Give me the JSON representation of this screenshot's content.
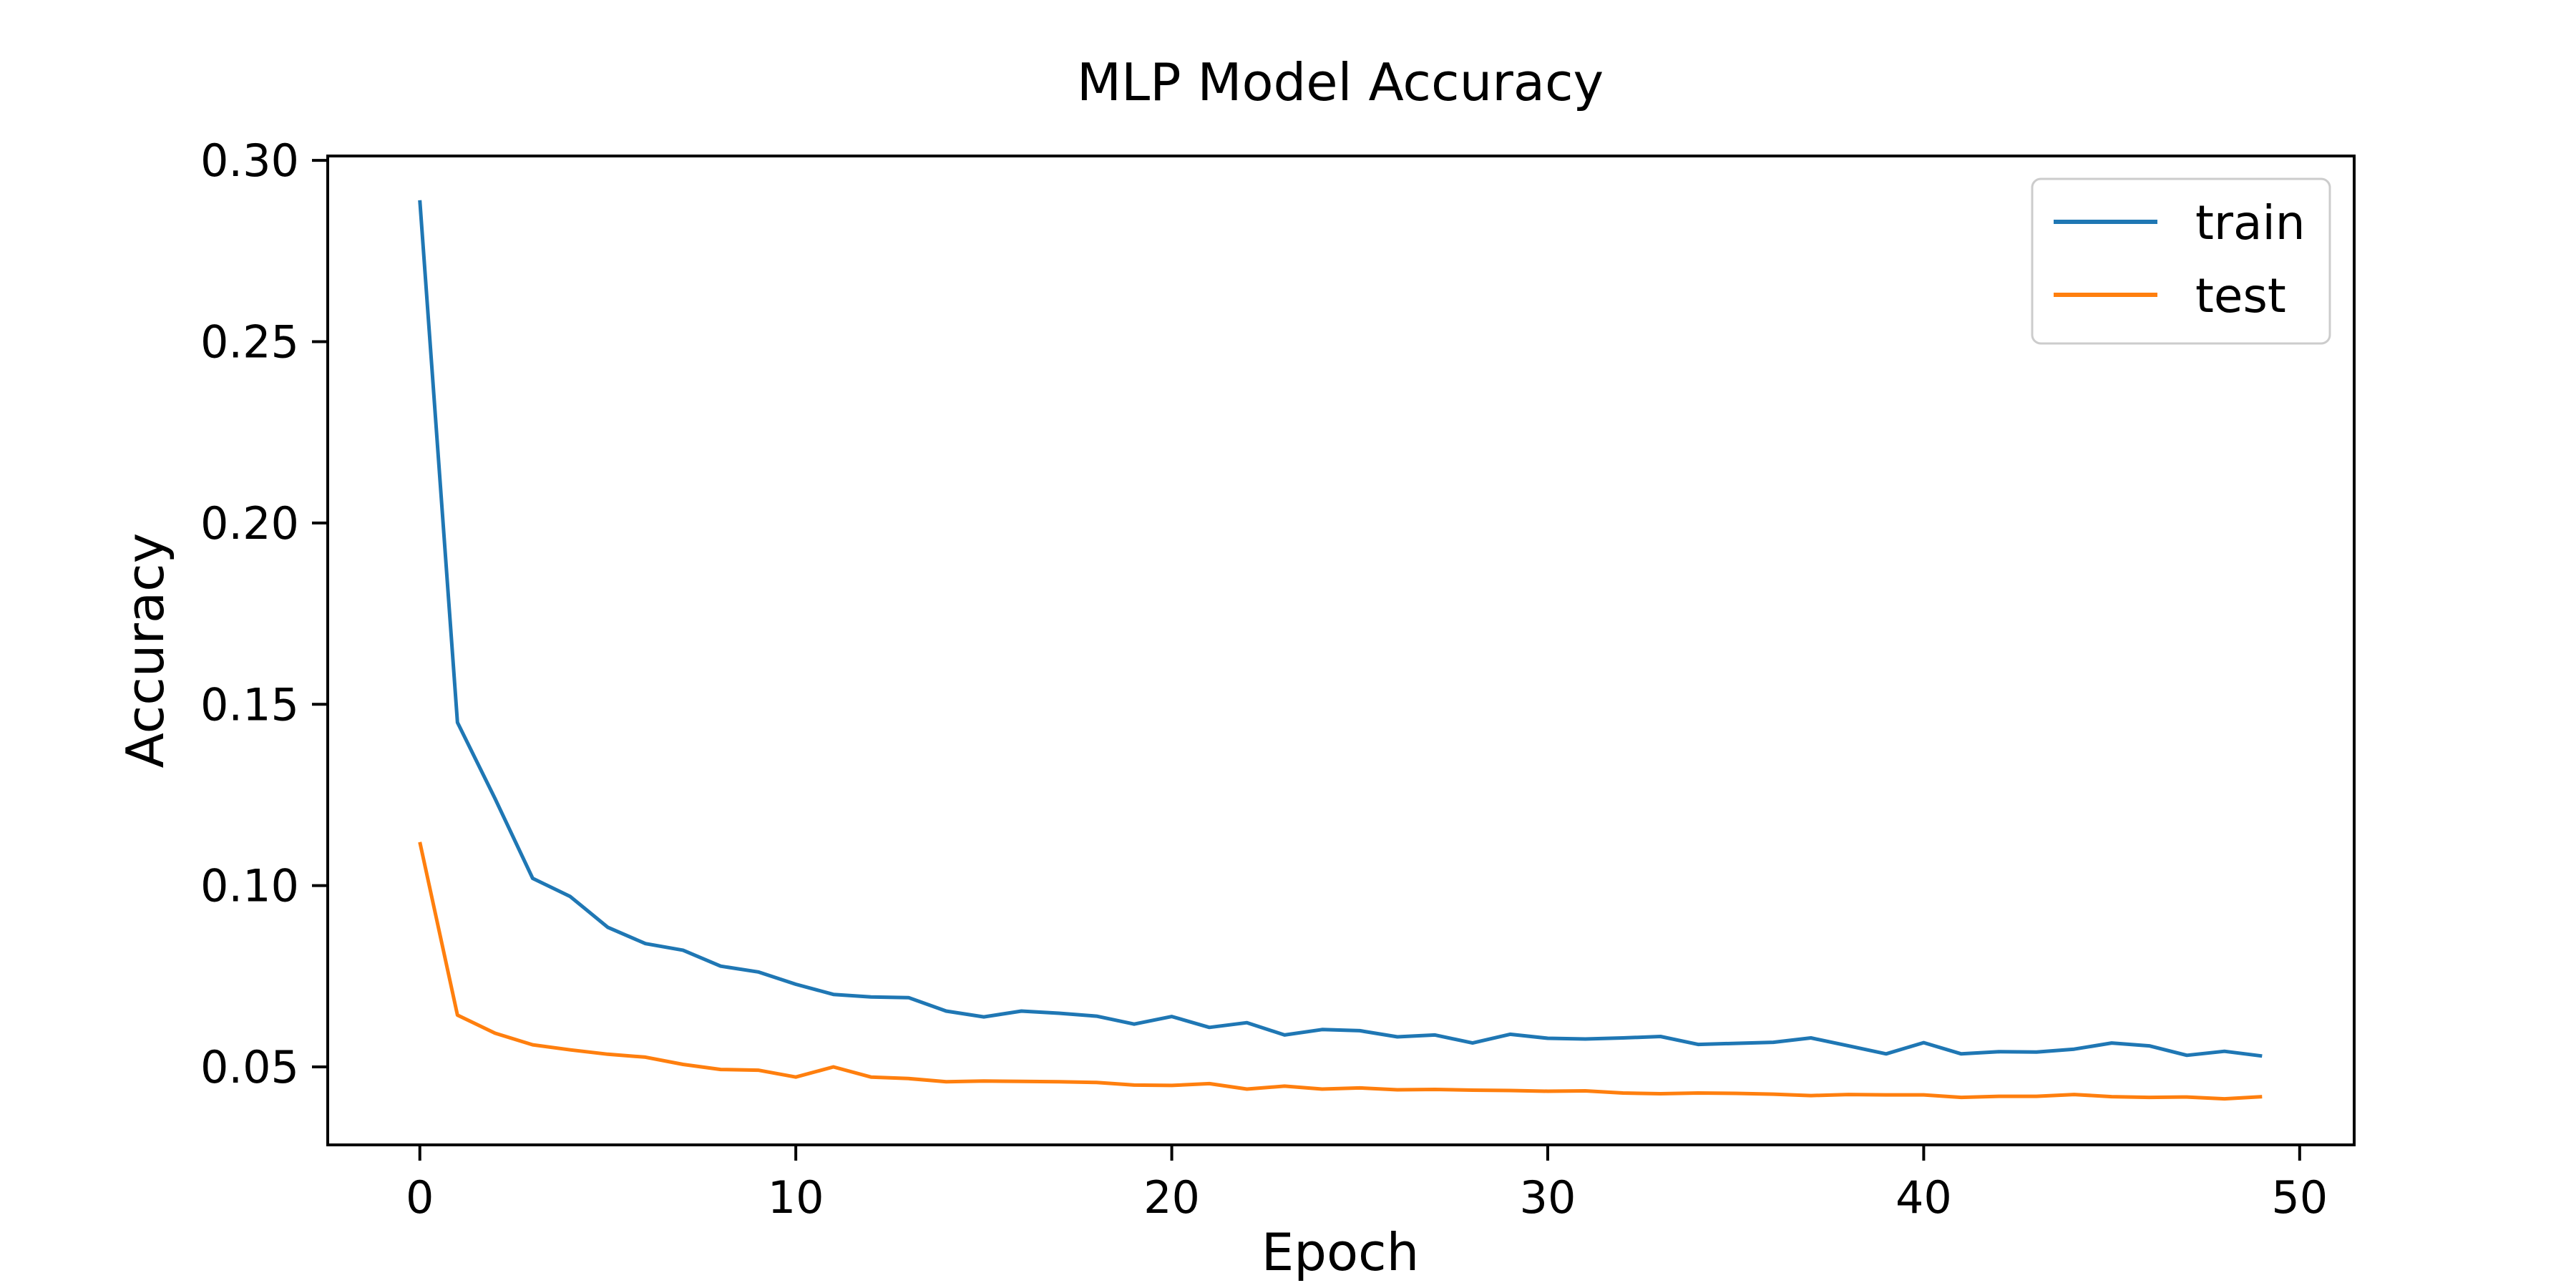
{
  "chart_data": {
    "type": "line",
    "title": "MLP Model Accuracy",
    "xlabel": "Epoch",
    "ylabel": "Accuracy",
    "xlim": [
      -2.45,
      51.45
    ],
    "ylim": [
      0.0285,
      0.3012
    ],
    "xticks": [
      0,
      10,
      20,
      30,
      40,
      50
    ],
    "yticks": [
      0.05,
      0.1,
      0.15,
      0.2,
      0.25,
      0.3
    ],
    "ytick_labels": [
      "0.05",
      "0.10",
      "0.15",
      "0.20",
      "0.25",
      "0.30"
    ],
    "grid": false,
    "legend": {
      "placement": "top-right"
    },
    "x": [
      0,
      1,
      2,
      3,
      4,
      5,
      6,
      7,
      8,
      9,
      10,
      11,
      12,
      13,
      14,
      15,
      16,
      17,
      18,
      19,
      20,
      21,
      22,
      23,
      24,
      25,
      26,
      27,
      28,
      29,
      30,
      31,
      32,
      33,
      34,
      35,
      36,
      37,
      38,
      39,
      40,
      41,
      42,
      43,
      44,
      45,
      46,
      47,
      48,
      49
    ],
    "series": [
      {
        "name": "train",
        "color": "#1f77b4",
        "values": [
          0.289,
          0.145,
          0.124,
          0.102,
          0.097,
          0.0885,
          0.084,
          0.0822,
          0.0778,
          0.0762,
          0.0728,
          0.07,
          0.0693,
          0.0691,
          0.0654,
          0.0638,
          0.0654,
          0.0648,
          0.064,
          0.0618,
          0.0639,
          0.0609,
          0.0622,
          0.0588,
          0.0603,
          0.06,
          0.0583,
          0.0588,
          0.0566,
          0.059,
          0.0579,
          0.0577,
          0.058,
          0.0584,
          0.0562,
          0.0565,
          0.0568,
          0.058,
          0.0558,
          0.0536,
          0.0567,
          0.0536,
          0.0542,
          0.0541,
          0.0549,
          0.0566,
          0.0558,
          0.0532,
          0.0543,
          0.053
        ]
      },
      {
        "name": "test",
        "color": "#ff7f0e",
        "values": [
          0.112,
          0.0643,
          0.0593,
          0.0561,
          0.0547,
          0.0535,
          0.0527,
          0.0507,
          0.0493,
          0.0491,
          0.0472,
          0.05,
          0.0472,
          0.0468,
          0.0459,
          0.0461,
          0.046,
          0.0459,
          0.0457,
          0.045,
          0.0449,
          0.0454,
          0.0439,
          0.0447,
          0.0439,
          0.0442,
          0.0437,
          0.0438,
          0.0436,
          0.0435,
          0.0433,
          0.0434,
          0.0428,
          0.0426,
          0.0428,
          0.0427,
          0.0425,
          0.0421,
          0.0424,
          0.0423,
          0.0423,
          0.0416,
          0.0419,
          0.0419,
          0.0424,
          0.0418,
          0.0416,
          0.0417,
          0.0412,
          0.0418
        ]
      }
    ]
  }
}
